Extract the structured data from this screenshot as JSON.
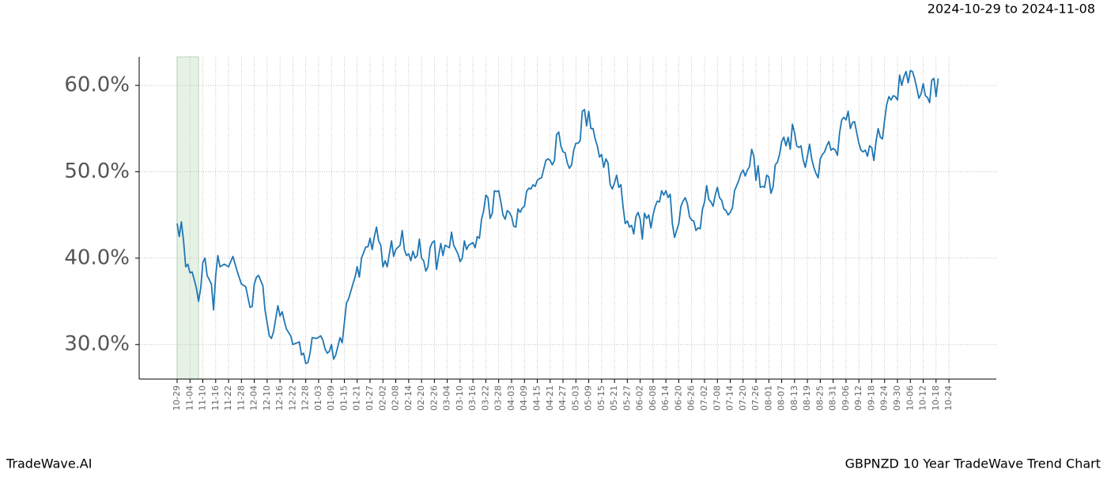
{
  "chart_data": {
    "type": "line",
    "title": "2024-10-29 to 2024-11-08",
    "brand": "TradeWave.AI",
    "subtitle": "GBPNZD 10 Year TradeWave Trend Chart",
    "highlight": [
      0,
      10
    ],
    "highlight_color": "#e6f2e6",
    "xlim": [
      -17.7,
      382.1
    ],
    "ylim": [
      26,
      63.3
    ],
    "grid": true,
    "xticks": [
      {
        "value": 0,
        "label": "10-29"
      },
      {
        "value": 6,
        "label": "11-04"
      },
      {
        "value": 12,
        "label": "11-10"
      },
      {
        "value": 18,
        "label": "11-16"
      },
      {
        "value": 24,
        "label": "11-22"
      },
      {
        "value": 30,
        "label": "11-28"
      },
      {
        "value": 36,
        "label": "12-04"
      },
      {
        "value": 42,
        "label": "12-10"
      },
      {
        "value": 48,
        "label": "12-16"
      },
      {
        "value": 54,
        "label": "12-22"
      },
      {
        "value": 60,
        "label": "12-28"
      },
      {
        "value": 66,
        "label": "01-03"
      },
      {
        "value": 72,
        "label": "01-09"
      },
      {
        "value": 78,
        "label": "01-15"
      },
      {
        "value": 84,
        "label": "01-21"
      },
      {
        "value": 90,
        "label": "01-27"
      },
      {
        "value": 96,
        "label": "02-02"
      },
      {
        "value": 102,
        "label": "02-08"
      },
      {
        "value": 108,
        "label": "02-14"
      },
      {
        "value": 114,
        "label": "02-20"
      },
      {
        "value": 120,
        "label": "02-26"
      },
      {
        "value": 126,
        "label": "03-04"
      },
      {
        "value": 132,
        "label": "03-10"
      },
      {
        "value": 138,
        "label": "03-16"
      },
      {
        "value": 144,
        "label": "03-22"
      },
      {
        "value": 150,
        "label": "03-28"
      },
      {
        "value": 156,
        "label": "04-03"
      },
      {
        "value": 162,
        "label": "04-09"
      },
      {
        "value": 168,
        "label": "04-15"
      },
      {
        "value": 174,
        "label": "04-21"
      },
      {
        "value": 180,
        "label": "04-27"
      },
      {
        "value": 186,
        "label": "05-03"
      },
      {
        "value": 192,
        "label": "05-09"
      },
      {
        "value": 198,
        "label": "05-15"
      },
      {
        "value": 204,
        "label": "05-21"
      },
      {
        "value": 210,
        "label": "05-27"
      },
      {
        "value": 216,
        "label": "06-02"
      },
      {
        "value": 222,
        "label": "06-08"
      },
      {
        "value": 228,
        "label": "06-14"
      },
      {
        "value": 234,
        "label": "06-20"
      },
      {
        "value": 240,
        "label": "06-26"
      },
      {
        "value": 246,
        "label": "07-02"
      },
      {
        "value": 252,
        "label": "07-08"
      },
      {
        "value": 258,
        "label": "07-14"
      },
      {
        "value": 264,
        "label": "07-20"
      },
      {
        "value": 270,
        "label": "07-26"
      },
      {
        "value": 276,
        "label": "08-01"
      },
      {
        "value": 282,
        "label": "08-07"
      },
      {
        "value": 288,
        "label": "08-13"
      },
      {
        "value": 294,
        "label": "08-19"
      },
      {
        "value": 300,
        "label": "08-25"
      },
      {
        "value": 306,
        "label": "08-31"
      },
      {
        "value": 312,
        "label": "09-06"
      },
      {
        "value": 318,
        "label": "09-12"
      },
      {
        "value": 324,
        "label": "09-18"
      },
      {
        "value": 330,
        "label": "09-24"
      },
      {
        "value": 336,
        "label": "09-30"
      },
      {
        "value": 342,
        "label": "10-06"
      },
      {
        "value": 348,
        "label": "10-12"
      },
      {
        "value": 354,
        "label": "10-18"
      },
      {
        "value": 360,
        "label": "10-24"
      }
    ],
    "yticks": [
      {
        "value": 30,
        "label": "30.0%"
      },
      {
        "value": 40,
        "label": "40.0%"
      },
      {
        "value": 50,
        "label": "50.0%"
      },
      {
        "value": 60,
        "label": "60.0%"
      }
    ],
    "x": [
      0,
      1,
      2,
      3,
      4,
      5,
      6,
      7,
      8,
      9,
      10,
      11,
      12,
      13,
      14,
      15,
      16,
      17,
      18,
      19,
      20,
      22,
      24,
      26,
      28,
      30,
      32,
      34,
      35,
      36,
      37,
      38,
      40,
      41,
      43,
      44,
      45,
      47,
      48,
      49,
      50,
      51,
      53,
      54,
      57,
      58,
      59,
      60,
      61,
      62,
      63,
      65,
      67,
      68,
      69,
      70,
      71,
      72,
      73,
      74,
      76,
      77,
      78,
      79,
      80,
      82,
      83,
      84,
      85,
      86,
      88,
      89,
      90,
      91,
      92,
      93,
      94,
      95,
      96,
      97,
      98,
      100,
      101,
      102,
      104,
      105,
      106,
      107,
      108,
      109,
      110,
      111,
      112,
      113,
      114,
      115,
      116,
      117,
      118,
      119,
      120,
      121,
      122,
      123,
      124,
      125,
      127,
      128,
      129,
      130,
      131,
      132,
      133,
      134,
      135,
      136,
      138,
      139,
      140,
      141,
      142,
      143,
      144,
      145,
      146,
      147,
      148,
      149,
      150,
      151,
      152,
      153,
      154,
      155,
      156,
      157,
      158,
      159,
      160,
      161,
      162,
      163,
      164,
      165,
      166,
      167,
      168,
      169,
      170,
      171,
      172,
      173,
      174,
      175,
      176,
      177,
      178,
      179,
      180,
      181,
      182,
      183,
      184,
      185,
      186,
      187,
      188,
      189,
      190,
      191,
      192,
      193,
      194,
      195,
      196,
      197,
      198,
      199,
      200,
      201,
      202,
      203,
      204,
      205,
      206,
      207,
      208,
      209,
      210,
      211,
      212,
      213,
      214,
      215,
      216,
      217,
      218,
      219,
      220,
      221,
      222,
      223,
      224,
      225,
      226,
      227,
      228,
      229,
      230,
      231,
      232,
      233,
      234,
      235,
      236,
      237,
      238,
      239,
      240,
      241,
      242,
      243,
      244,
      245,
      246,
      247,
      248,
      249,
      250,
      251,
      252,
      253,
      254,
      255,
      256,
      257,
      258,
      259,
      260,
      261,
      262,
      263,
      264,
      265,
      266,
      267,
      268,
      269,
      270,
      271,
      272,
      273,
      274,
      275,
      276,
      277,
      278,
      279,
      280,
      281,
      282,
      283,
      284,
      285,
      286,
      287,
      288,
      289,
      290,
      291,
      292,
      293,
      294,
      295,
      296,
      297,
      298,
      299,
      300,
      301,
      302,
      303,
      304,
      305,
      306,
      307,
      308,
      309,
      310,
      311,
      312,
      313,
      314,
      315,
      316,
      317,
      318,
      319,
      320,
      321,
      322,
      323,
      324,
      325,
      326,
      327,
      328,
      329,
      330,
      331,
      332,
      333,
      334,
      335,
      336,
      337,
      338,
      339,
      340,
      341,
      342,
      343,
      344,
      345,
      346,
      347,
      348,
      349,
      350,
      351,
      352,
      353,
      354,
      355
    ],
    "series": [
      {
        "color": "#1f77b4",
        "values": [
          44,
          42.5,
          44.2,
          42,
          39,
          39.3,
          38.3,
          38.4,
          37.5,
          36.5,
          35,
          36.5,
          39.5,
          40,
          38,
          37.5,
          37,
          34,
          38,
          40.3,
          39,
          39.3,
          39,
          40.2,
          38.5,
          37,
          36.7,
          34.3,
          34.4,
          37,
          37.8,
          38,
          36.8,
          34,
          31,
          30.7,
          31.5,
          34.5,
          33.3,
          33.8,
          32.7,
          31.8,
          31,
          30,
          30.3,
          28.8,
          29,
          27.8,
          27.9,
          29,
          30.8,
          30.7,
          31,
          30.5,
          29.5,
          29,
          29.2,
          30,
          28.3,
          28.8,
          30.8,
          30.2,
          32.5,
          34.8,
          35.3,
          37,
          37.8,
          39,
          37.8,
          40,
          41.3,
          41.3,
          42.3,
          41,
          42.5,
          43.6,
          42,
          41.5,
          39,
          39.7,
          39,
          42,
          40.2,
          41,
          41.5,
          43.2,
          41,
          40.3,
          40.5,
          39.7,
          40.8,
          40,
          40.3,
          42.2,
          40,
          39.7,
          38.5,
          39,
          41.2,
          41.8,
          42,
          38.7,
          40.3,
          41.7,
          40.3,
          41.5,
          41.2,
          43,
          41.5,
          41,
          40.5,
          39.6,
          40,
          42,
          41,
          41.5,
          41.8,
          41.2,
          42.5,
          42.3,
          44.5,
          45.5,
          47.3,
          47,
          44.6,
          45.2,
          47.8,
          47.7,
          47.8,
          46.5,
          45,
          44.5,
          45.5,
          45.3,
          44.8,
          43.7,
          43.6,
          45.7,
          45.3,
          45.8,
          46,
          47.7,
          48.1,
          48,
          48.5,
          48.3,
          49,
          49.2,
          49.3,
          50.3,
          51.3,
          51.5,
          51.3,
          50.8,
          51.3,
          54.3,
          54.6,
          53,
          52.3,
          52.2,
          51,
          50.4,
          50.8,
          52.5,
          53.3,
          53.3,
          53.6,
          57,
          57.2,
          55.3,
          57,
          55,
          55,
          53.8,
          53,
          51.7,
          52,
          50.5,
          51.5,
          51,
          48.5,
          48,
          48.7,
          49.6,
          48.2,
          48.5,
          46,
          44,
          44.3,
          43.6,
          43.8,
          42.8,
          44.8,
          45.3,
          44.5,
          42.2,
          45.2,
          44.6,
          45,
          43.5,
          45,
          46,
          46.6,
          46.5,
          47.8,
          47.3,
          47.8,
          47,
          47.4,
          44,
          42.4,
          43.2,
          44,
          46,
          46.6,
          47,
          46.3,
          44.8,
          44.4,
          44.3,
          43.2,
          43.5,
          43.4,
          45.6,
          46.5,
          48.4,
          46.8,
          46.5,
          46,
          47.3,
          48.2,
          47,
          46.7,
          45.7,
          45.5,
          45,
          45.3,
          45.8,
          47.8,
          48.4,
          49,
          49.8,
          50.2,
          49.5,
          50.2,
          50.6,
          52.6,
          51.8,
          49,
          50.7,
          48.2,
          48.3,
          48.2,
          49.6,
          49.4,
          47.5,
          48.3,
          50.8,
          51.1,
          52,
          53.5,
          54,
          53,
          54,
          52.6,
          55.5,
          54.5,
          53,
          52.8,
          53,
          51.4,
          50.5,
          51.8,
          53.2,
          51.5,
          50.5,
          49.8,
          49.3,
          51.5,
          52,
          52.3,
          53,
          53.5,
          52.5,
          52.7,
          52.5,
          51.9,
          54.5,
          56,
          56.3,
          56,
          57,
          55,
          55.7,
          55.8,
          54.5,
          53.3,
          52.5,
          52.3,
          52.5,
          51.8,
          53,
          52.8,
          51.3,
          53.5,
          55,
          54,
          53.8,
          56,
          57.8,
          58.7,
          58.3,
          58.8,
          58.7,
          58.3,
          61.2,
          60,
          61,
          61.6,
          60.3,
          61.7,
          61.6,
          60.8,
          59.7,
          58.5,
          59,
          60.2,
          58.8,
          58.6,
          58,
          60.6,
          60.8,
          58.7,
          60.8
        ]
      }
    ]
  }
}
